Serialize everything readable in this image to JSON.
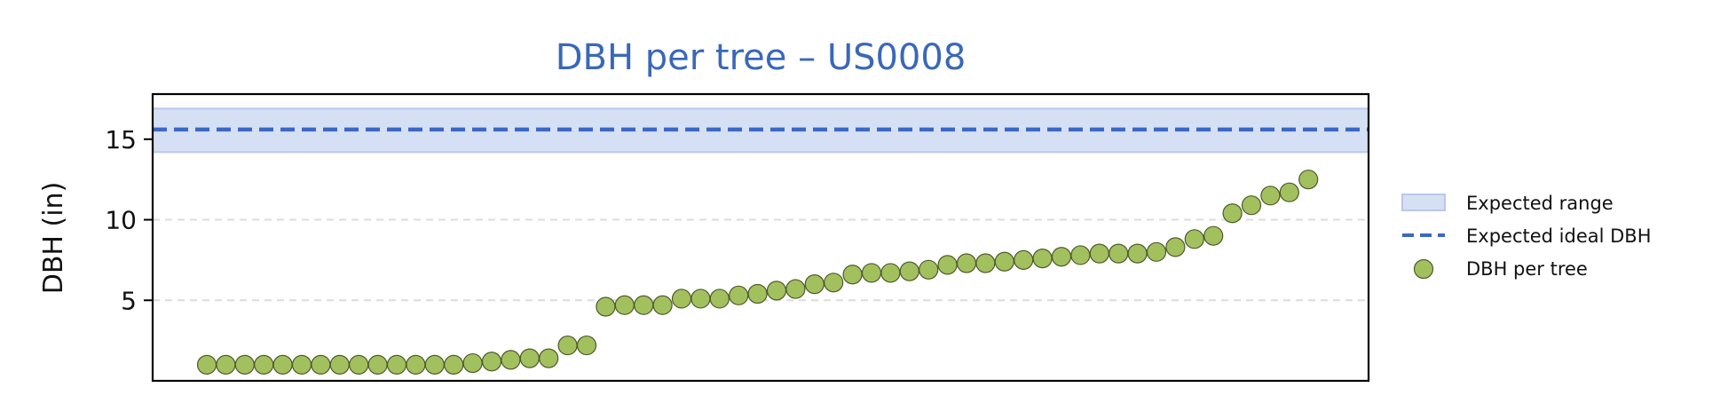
{
  "chart_data": {
    "type": "scatter",
    "title": "DBH per tree – US0008",
    "xlabel": "",
    "ylabel": "DBH (in)",
    "ylim": [
      0,
      17.8
    ],
    "yticks": [
      5,
      10,
      15
    ],
    "grid": "y-dashed",
    "legend_position": "right",
    "expected_range": {
      "label": "Expected range",
      "min": 14.2,
      "max": 16.9,
      "color": "#d6e0f4"
    },
    "expected_ideal": {
      "label": "Expected ideal DBH",
      "value": 15.6,
      "color": "#3a68c4"
    },
    "series": [
      {
        "name": "DBH per tree",
        "color": "#a3c05e",
        "edge_color": "#4a5a2a",
        "values": [
          1.0,
          1.0,
          1.0,
          1.0,
          1.0,
          1.0,
          1.0,
          1.0,
          1.0,
          1.0,
          1.0,
          1.0,
          1.0,
          1.0,
          1.1,
          1.2,
          1.3,
          1.4,
          1.4,
          2.2,
          2.2,
          4.6,
          4.7,
          4.7,
          4.7,
          5.1,
          5.1,
          5.1,
          5.3,
          5.4,
          5.6,
          5.7,
          6.0,
          6.1,
          6.6,
          6.7,
          6.7,
          6.8,
          6.9,
          7.2,
          7.3,
          7.3,
          7.4,
          7.5,
          7.6,
          7.7,
          7.8,
          7.9,
          7.9,
          7.9,
          8.0,
          8.3,
          8.8,
          9.0,
          10.4,
          10.9,
          11.5,
          11.7,
          12.5
        ]
      }
    ]
  }
}
